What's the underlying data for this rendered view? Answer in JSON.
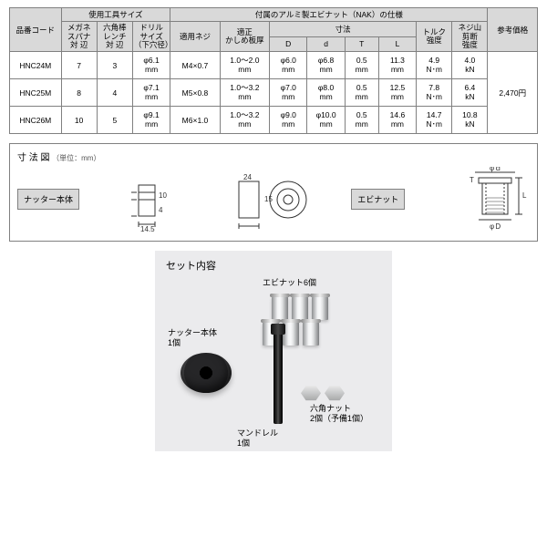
{
  "table": {
    "h_code": "品番コード",
    "h_tool_group": "使用工具サイズ",
    "h_nak_group": "付属のアルミ製エビナット（NAK）の仕様",
    "h_ref_price": "参考価格",
    "h_spanner": "メガネ\nスパナ\n対 辺",
    "h_hexbar": "六角棒\nレンチ\n対 辺",
    "h_drill": "ドリル\nサイズ\n（下穴径）",
    "h_screw": "適用ネジ",
    "h_crimp": "適正\nかしめ板厚",
    "h_dim": "寸法",
    "h_D": "D",
    "h_d": "d",
    "h_T": "T",
    "h_L": "L",
    "h_torque": "トルク\n強度",
    "h_shear": "ネジ山\n剪断\n強度",
    "rows": [
      {
        "code": "HNC24M",
        "spanner": "7",
        "hexbar": "3",
        "drill": "φ6.1\nmm",
        "screw": "M4×0.7",
        "crimp": "1.0～2.0\nmm",
        "D": "φ6.0\nmm",
        "d": "φ6.8\nmm",
        "T": "0.5\nmm",
        "L": "11.3\nmm",
        "torque": "4.9\nN･m",
        "shear": "4.0\nkN"
      },
      {
        "code": "HNC25M",
        "spanner": "8",
        "hexbar": "4",
        "drill": "φ7.1\nmm",
        "screw": "M5×0.8",
        "crimp": "1.0～3.2\nmm",
        "D": "φ7.0\nmm",
        "d": "φ8.0\nmm",
        "T": "0.5\nmm",
        "L": "12.5\nmm",
        "torque": "7.8\nN･m",
        "shear": "6.4\nkN"
      },
      {
        "code": "HNC26M",
        "spanner": "10",
        "hexbar": "5",
        "drill": "φ9.1\nmm",
        "screw": "M6×1.0",
        "crimp": "1.0～3.2\nmm",
        "D": "φ9.0\nmm",
        "d": "φ10.0\nmm",
        "T": "0.5\nmm",
        "L": "14.6\nmm",
        "torque": "14.7\nN･m",
        "shear": "10.8\nkN"
      }
    ],
    "price": "2,470円"
  },
  "dim": {
    "title": "寸 法 図",
    "unit": "（単位：mm）",
    "label_nutter": "ナッター本体",
    "label_ebi": "エビナット",
    "n10": "10",
    "n4": "4",
    "n14_5": "14.5",
    "n24": "24",
    "n15": "15",
    "phi_d": "φｄ",
    "phi_D": "φＤ",
    "T": "T",
    "L": "L"
  },
  "set": {
    "title": "セット内容",
    "l_ebi": "エビナット6個",
    "l_nutter": "ナッター本体\n1個",
    "l_mandrel": "マンドレル\n1個",
    "l_hex": "六角ナット\n2個（予備1個）"
  }
}
